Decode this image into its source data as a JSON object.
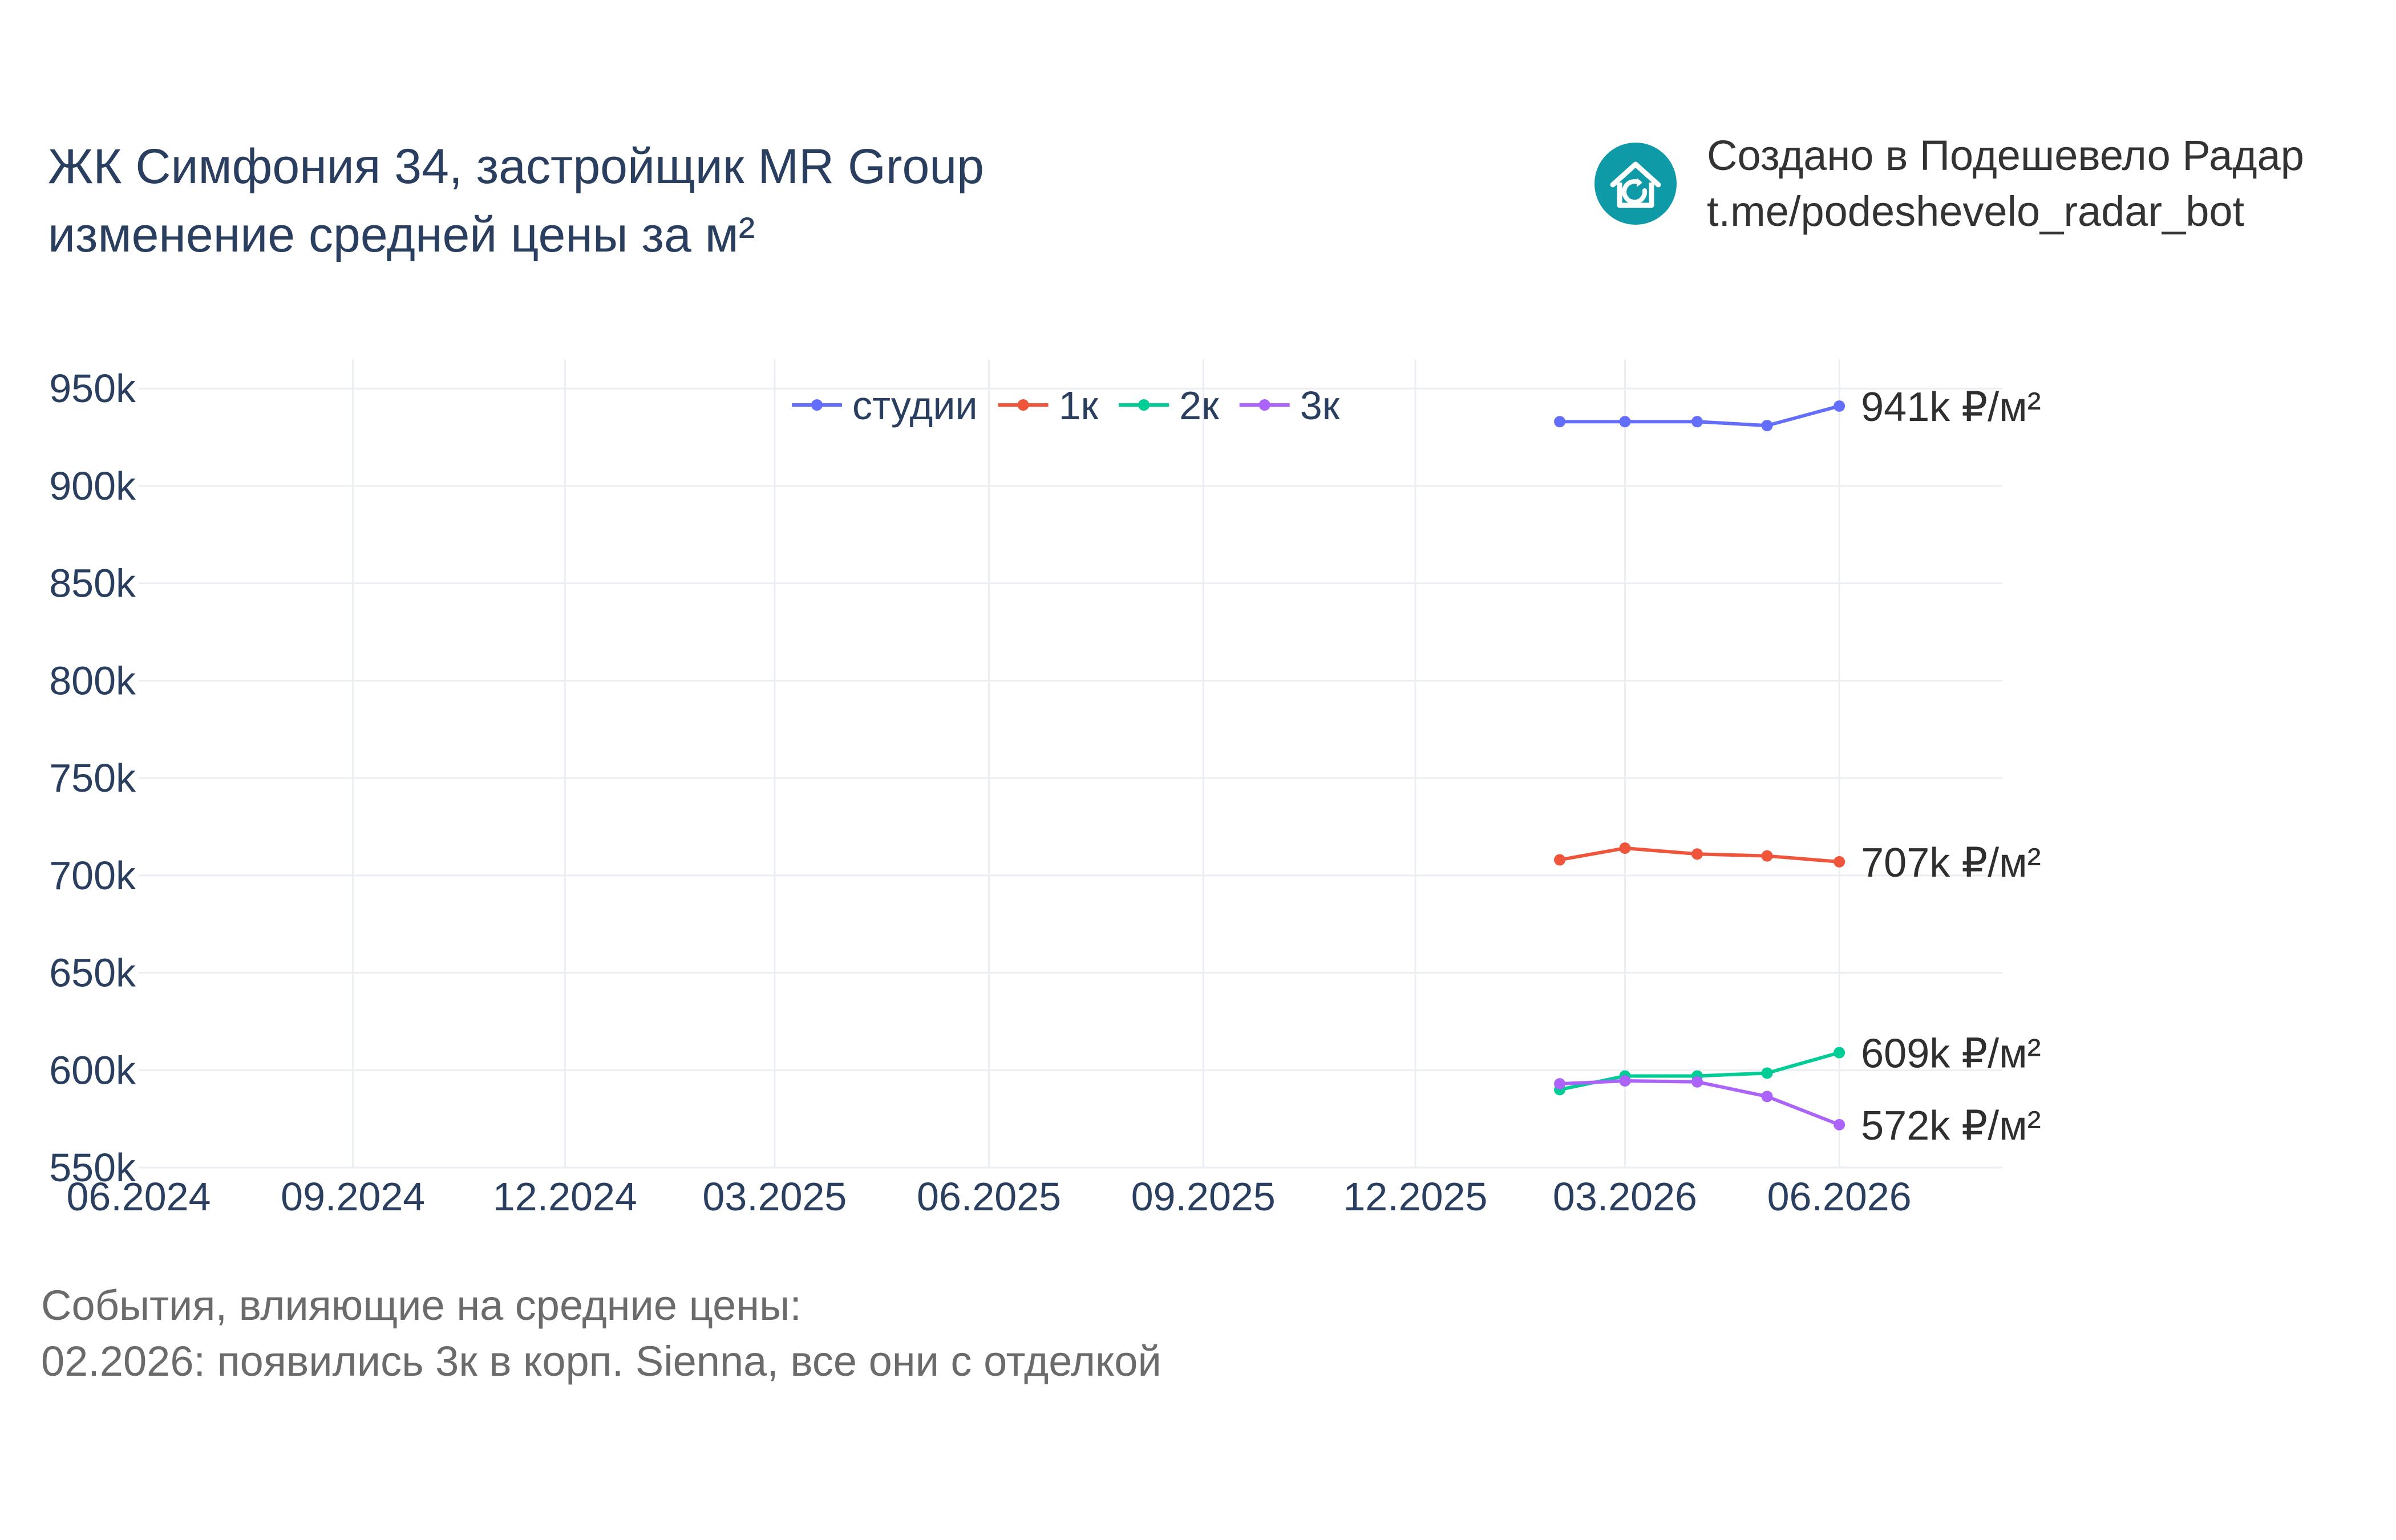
{
  "title": {
    "line1": "ЖК Симфония 34, застройщик MR Group",
    "line2": "изменение средней цены за м²"
  },
  "credit": {
    "line1": "Создано в Подешевело Радар",
    "line2": "t.me/podeshevelo_radar_bot",
    "logo_icon": "house-refresh-icon",
    "logo_color": "#0e9aa7"
  },
  "events": {
    "heading": "События, влияющие на средние цены:",
    "items": [
      "02.2026: появились 3к в корп. Sienna, все они с отделкой"
    ]
  },
  "chart_data": {
    "type": "line",
    "x_tick_labels": [
      "06.2024",
      "09.2024",
      "12.2024",
      "03.2025",
      "06.2025",
      "09.2025",
      "12.2025",
      "03.2026",
      "06.2026"
    ],
    "y_tick_labels": [
      "550k",
      "600k",
      "650k",
      "700k",
      "750k",
      "800k",
      "850k",
      "900k",
      "950k"
    ],
    "xlim": [
      "2024-06-01",
      "2026-08-10"
    ],
    "ylim": [
      550000,
      965000
    ],
    "grid": true,
    "legend_position": "top-center",
    "x": [
      "2026-02-01",
      "2026-03-01",
      "2026-04-01",
      "2026-05-01",
      "2026-06-01"
    ],
    "series": [
      {
        "name": "студии",
        "color": "#636efa",
        "values": [
          933000,
          933000,
          933000,
          931000,
          941000
        ],
        "end_label": "941k ₽/м²"
      },
      {
        "name": "1к",
        "color": "#ef553b",
        "values": [
          708000,
          714000,
          711000,
          710000,
          707000
        ],
        "end_label": "707k ₽/м²"
      },
      {
        "name": "2к",
        "color": "#00cc96",
        "values": [
          590000,
          597000,
          597000,
          598500,
          609000
        ],
        "end_label": "609k ₽/м²"
      },
      {
        "name": "3к",
        "color": "#ab63fa",
        "values": [
          593000,
          594500,
          594000,
          586500,
          572000
        ],
        "end_label": "572k ₽/м²"
      }
    ]
  }
}
